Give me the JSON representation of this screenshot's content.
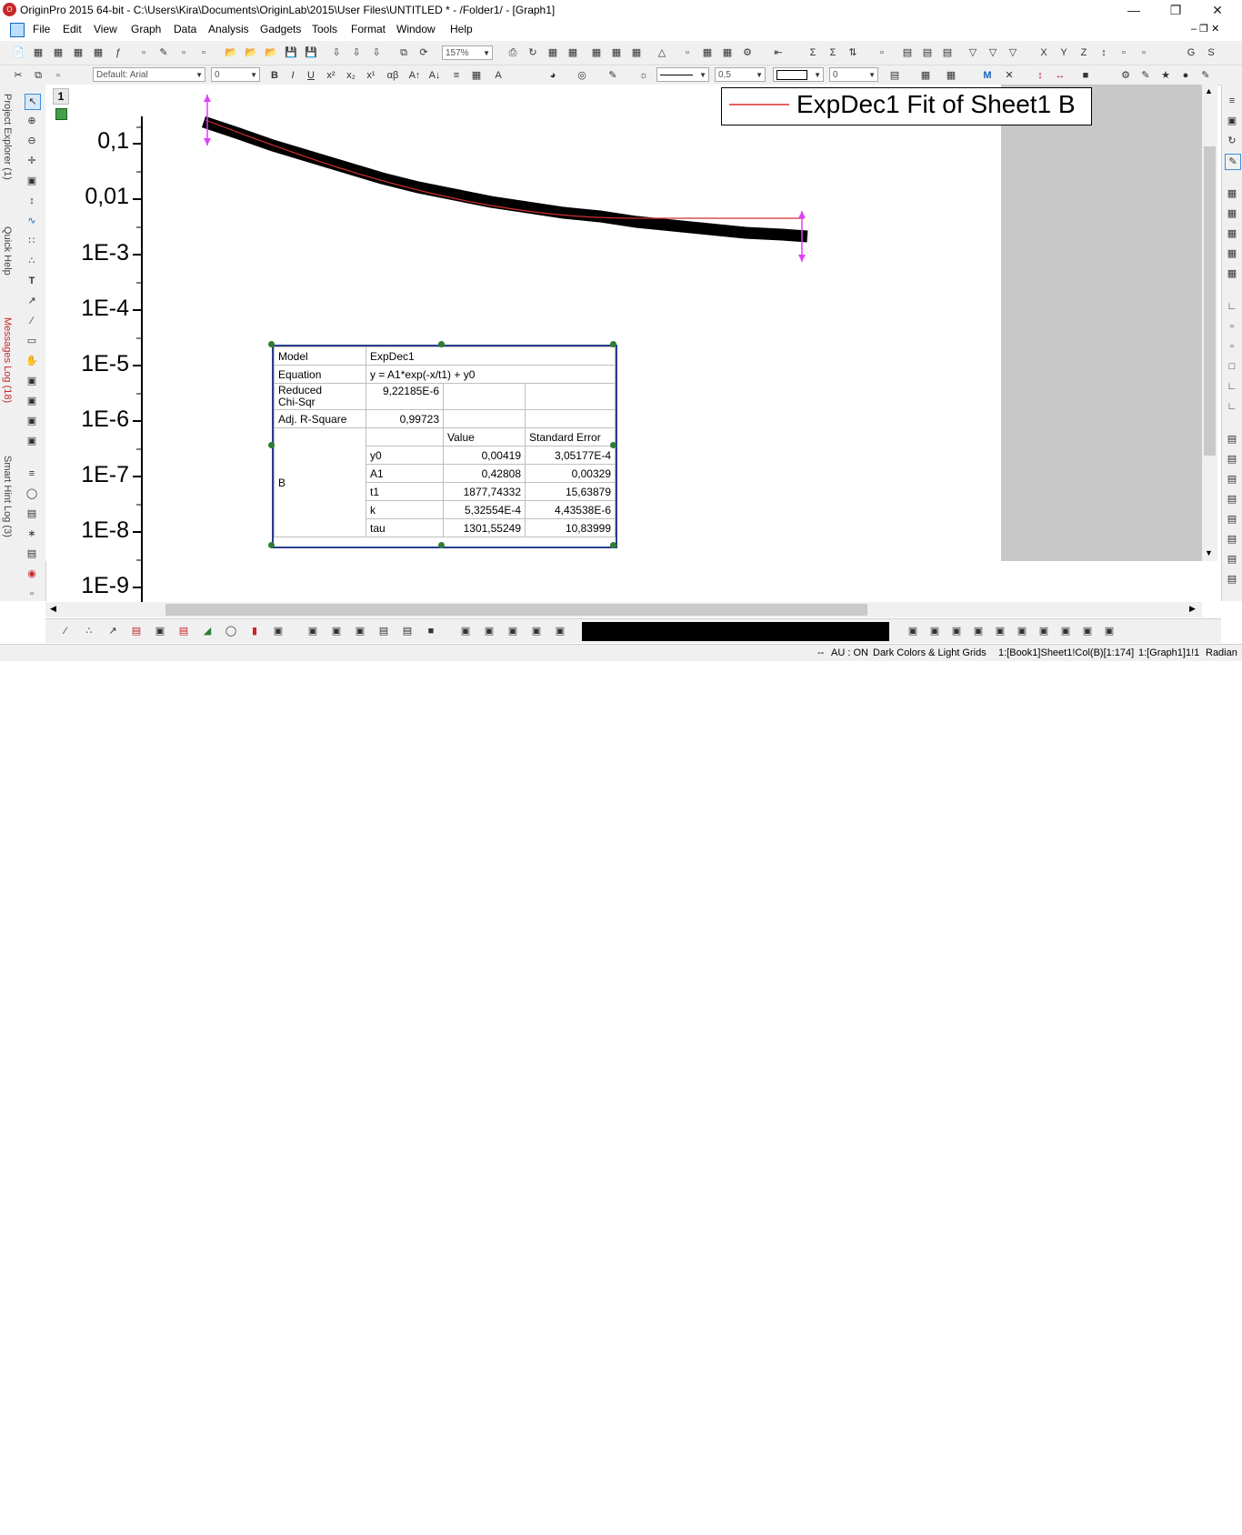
{
  "window": {
    "title": "OriginPro 2015 64-bit - C:\\Users\\Kira\\Documents\\OriginLab\\2015\\User Files\\UNTITLED * - /Folder1/ - [Graph1]",
    "controls": [
      "minimize-icon",
      "restore-icon",
      "close-icon"
    ]
  },
  "menu": [
    "File",
    "Edit",
    "View",
    "Graph",
    "Data",
    "Analysis",
    "Gadgets",
    "Tools",
    "Format",
    "Window",
    "Help"
  ],
  "toolbar": {
    "zoom": "157%",
    "font_name": "Default: Arial",
    "font_size": "0",
    "line_width": "0,5",
    "pattern_value": "0",
    "greek_label": "αβ",
    "letters": [
      "X",
      "Y",
      "Z",
      "G",
      "S"
    ]
  },
  "left_tabs": [
    "Project Explorer (1)",
    "Quick Help",
    "Messages Log (18)",
    "Smart Hint Log (3)"
  ],
  "layer_number": "1",
  "legend": {
    "text": "ExpDec1 Fit of Sheet1 B",
    "line_color": "#d32f2f"
  },
  "results_table": {
    "model_label": "Model",
    "model": "ExpDec1",
    "equation_label": "Equation",
    "equation": "y = A1*exp(-x/t1) + y0",
    "chisqr_label_line1": "Reduced",
    "chisqr_label_line2": "Chi-Sqr",
    "chisqr": "9,22185E-6",
    "adjr_label": "Adj. R-Square",
    "adjr": "0,99723",
    "col_value": "Value",
    "col_error": "Standard Error",
    "group": "B",
    "params": [
      {
        "name": "y0",
        "value": "0,00419",
        "error": "3,05177E-4"
      },
      {
        "name": "A1",
        "value": "0,42808",
        "error": "0,00329"
      },
      {
        "name": "t1",
        "value": "1877,74332",
        "error": "15,63879"
      },
      {
        "name": "k",
        "value": "5,32554E-4",
        "error": "4,43538E-6"
      },
      {
        "name": "tau",
        "value": "1301,55249",
        "error": "10,83999"
      }
    ]
  },
  "status_bar": {
    "items": [
      "--",
      "AU : ON",
      "Dark Colors & Light Grids",
      "1:[Book1]Sheet1!Col(B)[1:174]",
      "1:[Graph1]1!1",
      "Radian"
    ]
  },
  "chart_data": {
    "type": "scatter",
    "yscale": "log",
    "y_tick_labels": [
      "0,1",
      "0,01",
      "1E-3",
      "1E-4",
      "1E-5",
      "1E-6",
      "1E-7",
      "1E-8",
      "1E-9"
    ],
    "series": [
      {
        "name": "Sheet1 B",
        "color": "#000000"
      },
      {
        "name": "ExpDec1 Fit of Sheet1 B",
        "color": "#d32f2f"
      }
    ]
  }
}
